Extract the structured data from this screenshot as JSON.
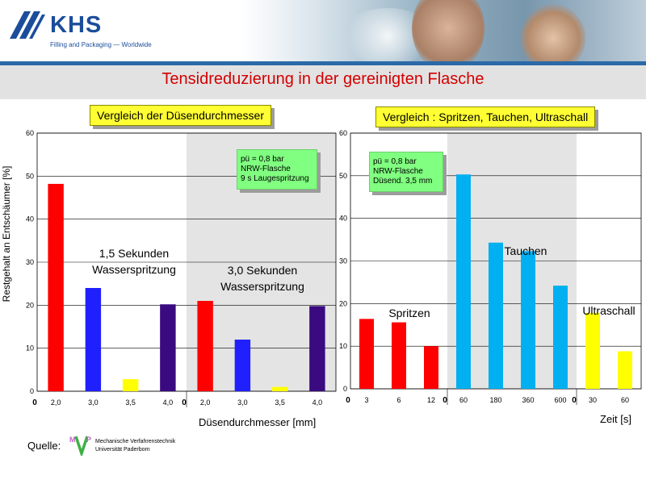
{
  "header": {
    "logo_text": "KHS",
    "tagline": "Filling and Packaging — Worldwide"
  },
  "title": "Tensidreduzierung in der gereinigten Flasche",
  "colors": {
    "title": "#d40000",
    "label_box": "#ffff33",
    "note_box": "#80ff80",
    "header_blue": "#1b4d9b"
  },
  "chart_data": [
    {
      "type": "bar",
      "title": "Vergleich der Düsendurchmesser",
      "ylabel": "Restgehalt an Entschäumer [%]",
      "xlabel": "Düsendurchmesser [mm]",
      "ylim": [
        0,
        60
      ],
      "yticks": [
        "0",
        "10",
        "20",
        "30",
        "40",
        "50",
        "60"
      ],
      "grid": true,
      "groups": [
        {
          "label": "1,5 Sekunden Wasserspritzung",
          "label_lines": [
            "1,5 Sekunden",
            "Wasserspritzung"
          ],
          "shaded": false,
          "categories": [
            "2,0",
            "3,0",
            "3,5",
            "4,0"
          ],
          "values": [
            48.2,
            24.0,
            2.8,
            20.2
          ],
          "colors": [
            "#ff0000",
            "#2020ff",
            "#ffff00",
            "#3a0a80"
          ]
        },
        {
          "label": "3,0 Sekunden Wasserspritzung",
          "label_lines": [
            "3,0 Sekunden",
            "Wasserspritzung"
          ],
          "shaded": true,
          "categories": [
            "2,0",
            "3,0",
            "3,5",
            "4,0"
          ],
          "values": [
            21.0,
            12.0,
            1.0,
            19.8
          ],
          "colors": [
            "#ff0000",
            "#2020ff",
            "#ffff00",
            "#3a0a80"
          ]
        }
      ],
      "zero_labels": [
        "0",
        "0"
      ],
      "note": [
        "pü = 0,8 bar",
        "NRW-Flasche",
        "9 s Laugespritzung"
      ]
    },
    {
      "type": "bar",
      "title": "Vergleich : Spritzen, Tauchen, Ultraschall",
      "xlabel": "Zeit [s]",
      "ylim": [
        0,
        60
      ],
      "yticks": [
        "0",
        "10",
        "20",
        "30",
        "40",
        "50",
        "60"
      ],
      "grid": true,
      "groups": [
        {
          "label": "Spritzen",
          "shaded": false,
          "categories": [
            "3",
            "6",
            "12"
          ],
          "values": [
            16.4,
            15.6,
            10.0
          ],
          "colors": [
            "#ff0000",
            "#ff0000",
            "#ff0000"
          ]
        },
        {
          "label": "Tauchen",
          "shaded": true,
          "categories": [
            "60",
            "180",
            "360",
            "600"
          ],
          "values": [
            50.3,
            34.3,
            32.3,
            24.2
          ],
          "colors": [
            "#00b0f0",
            "#00b0f0",
            "#00b0f0",
            "#00b0f0"
          ]
        },
        {
          "label": "Ultraschall",
          "shaded": false,
          "categories": [
            "30",
            "60"
          ],
          "values": [
            17.8,
            8.8
          ],
          "colors": [
            "#ffff00",
            "#ffff00"
          ]
        }
      ],
      "zero_labels": [
        "0",
        "0",
        "0"
      ],
      "note": [
        "pü = 0,8 bar",
        "NRW-Flasche",
        "Düsend. 3,5 mm"
      ]
    }
  ],
  "footer": {
    "source_label": "Quelle:",
    "institute_line1": "Mechanische Verfahrenstechnik",
    "institute_line2": "Universität Paderborn",
    "logo_letters": "MVP"
  }
}
